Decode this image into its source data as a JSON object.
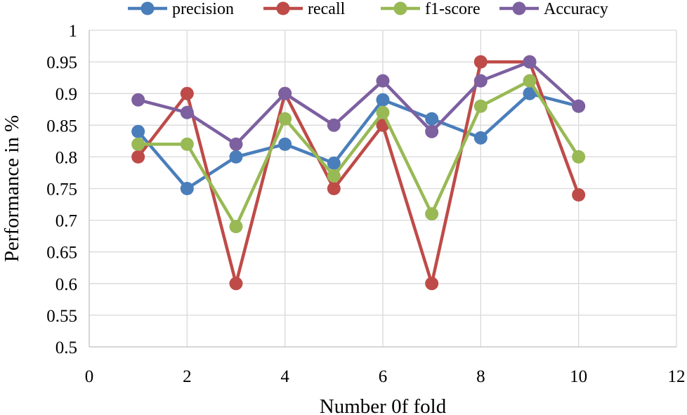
{
  "chart_data": {
    "type": "line",
    "title": "",
    "xlabel": "Number 0f fold",
    "ylabel": "Performance in %",
    "xlim": [
      0,
      12
    ],
    "ylim": [
      0.5,
      1.0
    ],
    "x_ticks": [
      0,
      2,
      4,
      6,
      8,
      10,
      12
    ],
    "y_ticks": [
      0.5,
      0.55,
      0.6,
      0.65,
      0.7,
      0.75,
      0.8,
      0.85,
      0.9,
      0.95,
      1.0
    ],
    "x_tick_labels": [
      "0",
      "2",
      "4",
      "6",
      "8",
      "10",
      "12"
    ],
    "y_tick_labels": [
      "0.5",
      "0.55",
      "0.6",
      "0.65",
      "0.7",
      "0.75",
      "0.8",
      "0.85",
      "0.9",
      "0.95",
      "1"
    ],
    "grid": "vertical and horizontal",
    "legend_position": "top",
    "x": [
      1,
      2,
      3,
      4,
      5,
      6,
      7,
      8,
      9,
      10
    ],
    "series": [
      {
        "name": "precision",
        "color": "#4a7ebb",
        "values": [
          0.84,
          0.75,
          0.8,
          0.82,
          0.79,
          0.89,
          0.86,
          0.83,
          0.9,
          0.88
        ]
      },
      {
        "name": "recall",
        "color": "#be4b48",
        "values": [
          0.8,
          0.9,
          0.6,
          0.9,
          0.75,
          0.85,
          0.6,
          0.95,
          0.95,
          0.74
        ]
      },
      {
        "name": "f1-score",
        "color": "#98b954",
        "values": [
          0.82,
          0.82,
          0.69,
          0.86,
          0.77,
          0.87,
          0.71,
          0.88,
          0.92,
          0.8
        ]
      },
      {
        "name": "Accuracy",
        "color": "#7d60a0",
        "values": [
          0.89,
          0.87,
          0.82,
          0.9,
          0.85,
          0.92,
          0.84,
          0.92,
          0.95,
          0.88
        ]
      }
    ]
  }
}
